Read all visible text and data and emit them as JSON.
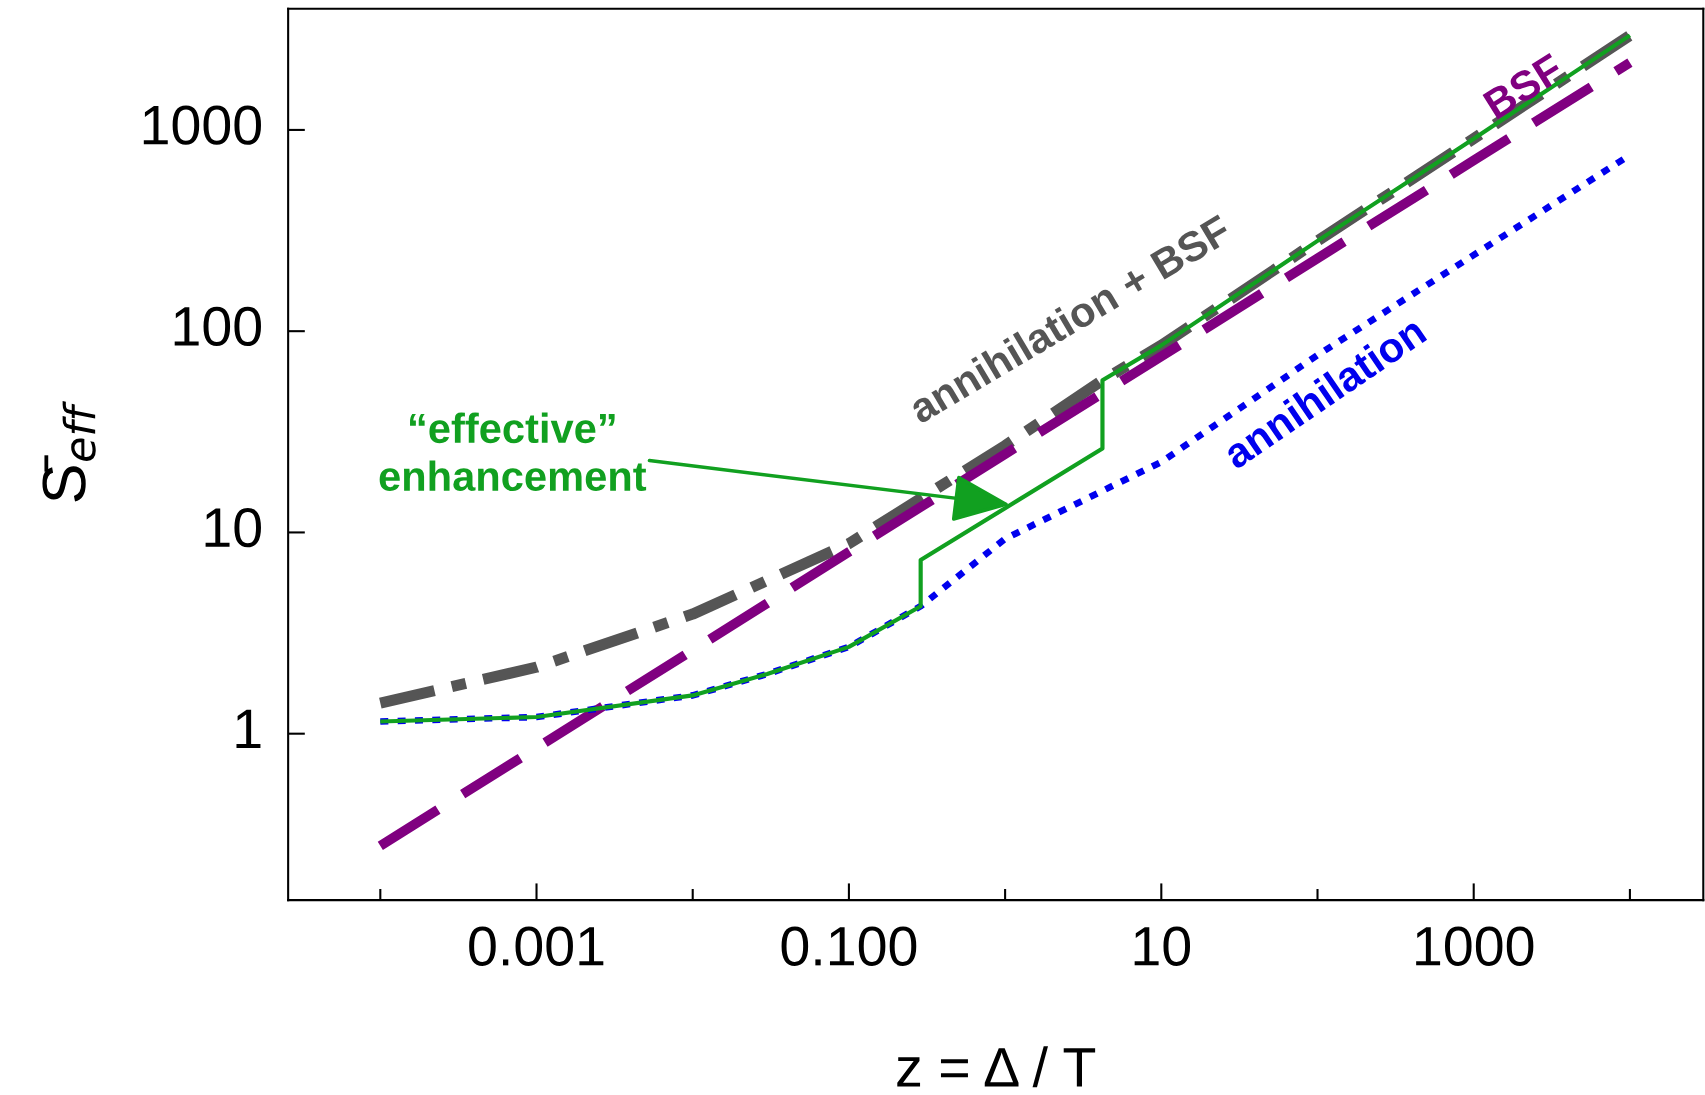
{
  "chart_data": {
    "type": "line",
    "xlabel": "z = Δ / T",
    "ylabel": "S̄$_{eff}$",
    "log": "xy",
    "xlim": [
      2.57e-05,
      29500
    ],
    "ylim": [
      0.149,
      4000
    ],
    "xticks": [
      {
        "value": 0.0001,
        "label": null
      },
      0.001,
      {
        "value": 0.01,
        "label": null
      },
      {
        "value": 0.1,
        "label": "0.100"
      },
      {
        "value": 1,
        "label": null
      },
      10,
      {
        "value": 100,
        "label": null
      },
      1000,
      {
        "value": 10000,
        "label": null
      }
    ],
    "yticks": [
      1,
      10,
      100,
      1000
    ],
    "grid": false,
    "marker": "none",
    "series": [
      {
        "name": "annihilation + BSF",
        "color": "#555555",
        "line_style": "dashdot",
        "x": [
          0.0001,
          0.001,
          0.01,
          0.1,
          1,
          4.2,
          10,
          100,
          1000,
          10000
        ],
        "values": [
          1.42,
          2.14,
          3.93,
          8.8,
          27,
          57,
          85,
          281,
          905,
          2950
        ]
      },
      {
        "name": "BSF",
        "color": "#800080",
        "line_style": "dashed",
        "x": [
          0.0001,
          0.001,
          0.01,
          0.1,
          1,
          10,
          100,
          1000,
          10000
        ],
        "values": [
          0.277,
          0.85,
          2.6,
          8.0,
          24.5,
          75,
          230,
          705,
          2160
        ]
      },
      {
        "name": "annihilation",
        "color": "#0000ee",
        "line_style": "dotted",
        "x": [
          0.0001,
          0.001,
          0.01,
          0.03,
          0.1,
          0.288,
          1,
          10,
          100,
          1000,
          10000
        ],
        "values": [
          1.15,
          1.21,
          1.55,
          1.98,
          2.7,
          4.3,
          9.3,
          22.4,
          76,
          239,
          750
        ]
      },
      {
        "color": "#11a020",
        "line_style": "solid",
        "x": [
          0.0001,
          0.001,
          0.01,
          0.03,
          0.1,
          0.288,
          0.288,
          1,
          4.2,
          4.2,
          10,
          100,
          1000,
          10000
        ],
        "values": [
          1.15,
          1.21,
          1.55,
          1.98,
          2.7,
          4.3,
          7.3,
          13.2,
          26.1,
          57,
          85,
          281,
          905,
          2950
        ]
      }
    ],
    "annotations": [
      {
        "text": "“effective”\nenhancement",
        "x": 1.08,
        "y": 13.7
      }
    ]
  }
}
